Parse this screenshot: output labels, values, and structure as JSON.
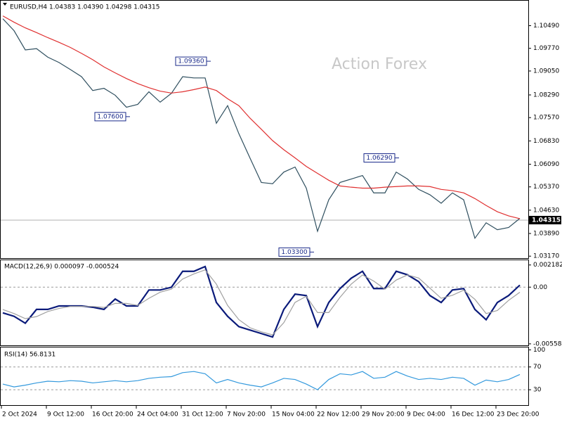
{
  "chart_data": [
    {
      "type": "line",
      "title": "EURUSD,H4 1.04383 1.04390 1.04298 1.04315",
      "watermark": "Action Forex",
      "ylim": [
        1.0313,
        1.1126
      ],
      "yticks": [
        {
          "value": 1.1049,
          "label": "1.10490"
        },
        {
          "value": 1.0977,
          "label": "1.09770"
        },
        {
          "value": 1.0905,
          "label": "1.09050"
        },
        {
          "value": 1.0829,
          "label": "1.08290"
        },
        {
          "value": 1.0757,
          "label": "1.07570"
        },
        {
          "value": 1.0683,
          "label": "1.06830"
        },
        {
          "value": 1.0609,
          "label": "1.06090"
        },
        {
          "value": 1.0537,
          "label": "1.05370"
        },
        {
          "value": 1.0463,
          "label": "1.04630"
        },
        {
          "value": 1.0389,
          "label": "1.03890"
        },
        {
          "value": 1.0317,
          "label": "1.03170"
        }
      ],
      "last_value": {
        "value": 1.04315,
        "label": "1.04315"
      },
      "annotations": [
        {
          "value": 1.0936,
          "label": "1.09360"
        },
        {
          "value": 1.076,
          "label": "1.07600"
        },
        {
          "value": 1.033,
          "label": "1.03300"
        },
        {
          "value": 1.0629,
          "label": "1.06290"
        }
      ],
      "series": [
        {
          "color": "#2f4f5f",
          "values": [
            1.1071,
            1.1033,
            1.0972,
            1.0976,
            1.0949,
            1.0932,
            1.091,
            1.0887,
            1.0843,
            1.085,
            1.0828,
            1.079,
            1.0799,
            1.0839,
            1.0806,
            1.0834,
            1.0887,
            1.0883,
            1.0883,
            1.0739,
            1.0795,
            1.0706,
            1.0628,
            1.0551,
            1.0547,
            1.0584,
            1.06,
            1.0533,
            1.0396,
            1.0496,
            1.0551,
            1.0562,
            1.0573,
            1.0518,
            1.0518,
            1.0584,
            1.0562,
            1.0529,
            1.0512,
            1.0485,
            1.0518,
            1.0496,
            1.0374,
            1.0423,
            1.0401,
            1.0408,
            1.0437
          ]
        },
        {
          "color": "#e03030",
          "values": [
            1.108,
            1.106,
            1.1042,
            1.1027,
            1.1011,
            1.0996,
            1.098,
            1.0961,
            1.0941,
            1.0918,
            1.0899,
            1.0881,
            1.0865,
            1.0852,
            1.0841,
            1.0835,
            1.0839,
            1.0846,
            1.0854,
            1.0843,
            1.0817,
            1.0795,
            1.0755,
            1.072,
            1.0684,
            1.0655,
            1.0629,
            1.0602,
            1.058,
            1.0558,
            1.054,
            1.0536,
            1.0533,
            1.0533,
            1.0536,
            1.0538,
            1.054,
            1.054,
            1.0538,
            1.0529,
            1.0525,
            1.0518,
            1.05,
            1.0478,
            1.0458,
            1.0445,
            1.0436
          ]
        }
      ]
    },
    {
      "type": "line",
      "title": "MACD(12,26,9) 0.000097 -0.000524",
      "ylim": [
        -0.00573,
        0.00258
      ],
      "yticks": [
        0.002182,
        {
          "value": 0,
          "label": "0.00"
        },
        -0.005584
      ],
      "zero_line": 0,
      "series": [
        {
          "color": "#0a1a7a",
          "values": [
            -0.00253,
            -0.00287,
            -0.00355,
            -0.00219,
            -0.00219,
            -0.00185,
            -0.00185,
            -0.00185,
            -0.00198,
            -0.00219,
            -0.00117,
            -0.00185,
            -0.00185,
            -0.00028,
            -0.00028,
            -1e-05,
            0.00156,
            0.00156,
            0.00203,
            -0.00151,
            -0.00287,
            -0.00389,
            -0.00423,
            -0.00457,
            -0.00491,
            -0.00219,
            -0.00069,
            -0.00083,
            -0.00389,
            -0.00151,
            -0.00014,
            0.00088,
            0.00156,
            -0.00014,
            -0.00014,
            0.00156,
            0.00122,
            0.00054,
            -0.00083,
            -0.00151,
            -0.00028,
            -0.00014,
            -0.00219,
            -0.00321,
            -0.00151,
            -0.00083,
            0.0002
          ]
        },
        {
          "color": "#a0a0a0",
          "values": [
            -0.0022,
            -0.0026,
            -0.0031,
            -0.0029,
            -0.0024,
            -0.0021,
            -0.0019,
            -0.0019,
            -0.0019,
            -0.002,
            -0.0016,
            -0.0016,
            -0.0018,
            -0.0011,
            -0.0005,
            -0.0002,
            0.0008,
            0.0013,
            0.0017,
            0.0003,
            -0.0018,
            -0.0032,
            -0.004,
            -0.0044,
            -0.0047,
            -0.0035,
            -0.0015,
            -0.0009,
            -0.0025,
            -0.0025,
            -0.001,
            0.0003,
            0.0012,
            0.0006,
            -0.0002,
            0.0007,
            0.0012,
            0.0009,
            -0.0001,
            -0.0011,
            -0.0008,
            -0.0003,
            -0.0012,
            -0.0026,
            -0.0023,
            -0.0013,
            -0.0005
          ]
        }
      ]
    },
    {
      "type": "line",
      "title": "RSI(14) 56.8131",
      "ylim": [
        3,
        103
      ],
      "yticks": [
        100,
        70,
        30
      ],
      "levels": [
        70,
        30
      ],
      "categories": [
        "2 Oct 2024",
        null,
        null,
        null,
        "9 Oct 12:00",
        null,
        null,
        null,
        "16 Oct 20:00",
        null,
        null,
        null,
        "24 Oct 04:00",
        null,
        null,
        null,
        "31 Oct 12:00",
        null,
        null,
        null,
        "7 Nov 20:00",
        null,
        null,
        null,
        "15 Nov 04:00",
        null,
        null,
        null,
        "22 Nov 12:00",
        null,
        null,
        null,
        "29 Nov 20:00",
        null,
        null,
        null,
        "9 Dec 04:00",
        null,
        null,
        null,
        "16 Dec 12:00",
        null,
        null,
        null,
        "23 Dec 20:00",
        null,
        null
      ],
      "series": [
        {
          "color": "#3399dd",
          "values": [
            40,
            35,
            38,
            42,
            45,
            44,
            46,
            45,
            42,
            44,
            46,
            44,
            46,
            50,
            52,
            53,
            60,
            62,
            58,
            42,
            48,
            42,
            38,
            35,
            42,
            50,
            48,
            40,
            30,
            48,
            58,
            56,
            62,
            50,
            52,
            62,
            54,
            48,
            50,
            48,
            52,
            50,
            38,
            47,
            44,
            48,
            56.8
          ]
        }
      ]
    }
  ]
}
